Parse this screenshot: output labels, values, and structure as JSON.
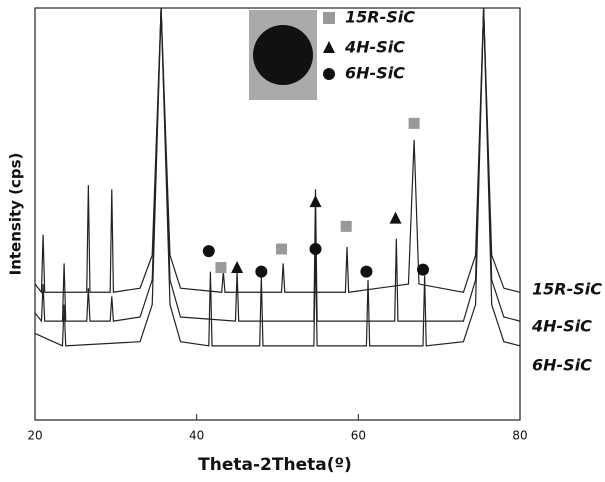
{
  "chart_data": {
    "type": "line",
    "xlabel": "Theta-2Theta(º)",
    "ylabel": "Intensity (cps)",
    "xlim": [
      20,
      80
    ],
    "xticks": [
      20,
      40,
      60,
      80
    ],
    "ylim": [
      0,
      100
    ],
    "series": [
      {
        "name": "15R-SiC",
        "color": "#222222",
        "marker": "square",
        "marker_color": "#999999",
        "x": [
          20,
          20.8,
          21,
          21.2,
          26.4,
          26.6,
          26.8,
          29.3,
          29.5,
          29.7,
          33,
          34.5,
          35.6,
          36.7,
          38,
          43.1,
          43.3,
          43.5,
          50.5,
          50.7,
          50.9,
          58.4,
          58.6,
          58.8,
          66.2,
          66.9,
          67.5,
          73,
          74.5,
          75.5,
          76.5,
          78,
          80
        ],
        "values": [
          33,
          31,
          45,
          31,
          31,
          57,
          31,
          31,
          56,
          31,
          32,
          40,
          100,
          40,
          32,
          31,
          36,
          31,
          31,
          38,
          31,
          31,
          42,
          31,
          33,
          68,
          33,
          31,
          40,
          100,
          40,
          32,
          31
        ],
        "peak_x": [
          43,
          50.5,
          58.5,
          66.9
        ],
        "peak_y": [
          37,
          41.5,
          47,
          72
        ]
      },
      {
        "name": "4H-SiC",
        "color": "#222222",
        "marker": "triangle",
        "marker_color": "#111111",
        "x": [
          20,
          20.8,
          21,
          21.2,
          23.4,
          23.6,
          23.8,
          26.4,
          26.6,
          26.8,
          29.3,
          29.5,
          29.7,
          33,
          34.5,
          35.6,
          36.7,
          38,
          44.8,
          45,
          45.2,
          54.5,
          54.7,
          54.9,
          64.5,
          64.7,
          64.9,
          73,
          74.5,
          75.5,
          76.5,
          78,
          80
        ],
        "values": [
          26,
          24,
          33,
          24,
          24,
          38,
          24,
          24,
          32,
          24,
          24,
          30,
          24,
          25,
          34,
          100,
          34,
          25,
          24,
          36,
          24,
          24,
          56,
          24,
          24,
          44,
          24,
          24,
          34,
          100,
          34,
          25,
          24
        ],
        "peak_x": [
          45,
          54.7,
          64.6
        ],
        "peak_y": [
          37,
          53,
          49
        ]
      },
      {
        "name": "6H-SiC",
        "color": "#222222",
        "marker": "circle",
        "marker_color": "#111111",
        "x": [
          20,
          23.4,
          23.6,
          23.8,
          33,
          34.5,
          35.6,
          36.7,
          38,
          41.5,
          41.7,
          41.9,
          47.8,
          48,
          48.2,
          54.5,
          54.7,
          54.9,
          61,
          61.2,
          61.4,
          68,
          68.2,
          68.4,
          73,
          74.5,
          75.5,
          76.5,
          78,
          80
        ],
        "values": [
          21,
          18,
          28,
          18,
          19,
          28,
          100,
          28,
          19,
          18,
          36,
          18,
          18,
          35,
          18,
          18,
          42,
          18,
          18,
          34,
          18,
          18,
          35,
          18,
          19,
          28,
          100,
          28,
          19,
          18
        ],
        "peak_x": [
          41.5,
          48,
          54.7,
          61,
          68
        ],
        "peak_y": [
          41,
          36,
          41.5,
          36,
          36.5
        ]
      }
    ]
  }
}
